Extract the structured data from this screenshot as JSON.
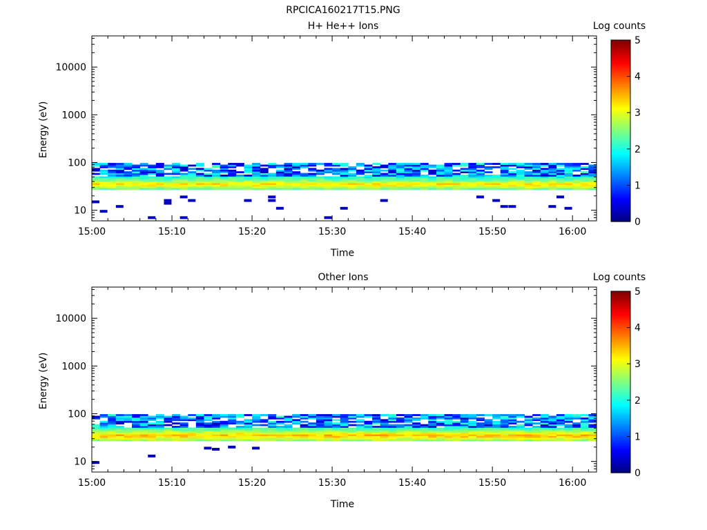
{
  "figure": {
    "title": "RPCICA160217T15.PNG"
  },
  "chart_data": [
    {
      "type": "heatmap",
      "title": "H+ He++ Ions",
      "xlabel": "Time",
      "ylabel": "Energy (eV)",
      "x_ticks": [
        "15:00",
        "15:10",
        "15:20",
        "15:30",
        "15:40",
        "15:50",
        "16:00"
      ],
      "x_range": [
        "15:00",
        "16:03"
      ],
      "y_scale": "log",
      "y_ticks": [
        10,
        100,
        1000,
        10000
      ],
      "y_tick_labels": [
        "10",
        "100",
        "1000",
        "10000"
      ],
      "y_range": [
        6,
        45000
      ],
      "colorbar": {
        "label": "Log counts",
        "range": [
          0,
          5
        ],
        "ticks": [
          "0",
          "1",
          "2",
          "3",
          "4",
          "5"
        ],
        "colormap": "jet"
      },
      "core_band": {
        "energy_min_eV": 27,
        "energy_max_eV": 52,
        "peak_energy_eV": 35,
        "peak_log_counts": 3.3
      },
      "upper_band": {
        "energy_min_eV": 52,
        "energy_max_eV": 98,
        "log_counts_range": [
          0.3,
          2.2
        ]
      },
      "sparse_low_energy": [
        {
          "time": "15:00",
          "energy_eV": 15,
          "log_counts": 0.3
        },
        {
          "time": "15:01",
          "energy_eV": 9.5,
          "log_counts": 0.3
        },
        {
          "time": "15:03",
          "energy_eV": 12,
          "log_counts": 0.3
        },
        {
          "time": "15:07",
          "energy_eV": 7,
          "log_counts": 0.3
        },
        {
          "time": "15:09",
          "energy_eV": 14,
          "log_counts": 0.3
        },
        {
          "time": "15:09",
          "energy_eV": 16,
          "log_counts": 0.3
        },
        {
          "time": "15:11",
          "energy_eV": 7,
          "log_counts": 0.3
        },
        {
          "time": "15:11",
          "energy_eV": 19,
          "log_counts": 0.3
        },
        {
          "time": "15:12",
          "energy_eV": 16,
          "log_counts": 0.3
        },
        {
          "time": "15:19",
          "energy_eV": 16,
          "log_counts": 0.3
        },
        {
          "time": "15:22",
          "energy_eV": 19,
          "log_counts": 0.3
        },
        {
          "time": "15:22",
          "energy_eV": 16,
          "log_counts": 0.3
        },
        {
          "time": "15:23",
          "energy_eV": 11,
          "log_counts": 0.4
        },
        {
          "time": "15:29",
          "energy_eV": 7,
          "log_counts": 0.3
        },
        {
          "time": "15:31",
          "energy_eV": 11,
          "log_counts": 0.3
        },
        {
          "time": "15:36",
          "energy_eV": 16,
          "log_counts": 0.3
        },
        {
          "time": "15:48",
          "energy_eV": 19,
          "log_counts": 0.3
        },
        {
          "time": "15:50",
          "energy_eV": 16,
          "log_counts": 0.3
        },
        {
          "time": "15:51",
          "energy_eV": 12,
          "log_counts": 0.3
        },
        {
          "time": "15:52",
          "energy_eV": 12,
          "log_counts": 0.4
        },
        {
          "time": "15:57",
          "energy_eV": 12,
          "log_counts": 0.3
        },
        {
          "time": "15:58",
          "energy_eV": 19,
          "log_counts": 0.3
        },
        {
          "time": "15:59",
          "energy_eV": 11,
          "log_counts": 0.3
        }
      ]
    },
    {
      "type": "heatmap",
      "title": "Other Ions",
      "xlabel": "Time",
      "ylabel": "Energy (eV)",
      "x_ticks": [
        "15:00",
        "15:10",
        "15:20",
        "15:30",
        "15:40",
        "15:50",
        "16:00"
      ],
      "x_range": [
        "15:00",
        "16:03"
      ],
      "y_scale": "log",
      "y_ticks": [
        10,
        100,
        1000,
        10000
      ],
      "y_tick_labels": [
        "10",
        "100",
        "1000",
        "10000"
      ],
      "y_range": [
        6,
        45000
      ],
      "colorbar": {
        "label": "Log counts",
        "range": [
          0,
          5
        ],
        "ticks": [
          "0",
          "1",
          "2",
          "3",
          "4",
          "5"
        ],
        "colormap": "jet"
      },
      "core_band": {
        "energy_min_eV": 27,
        "energy_max_eV": 52,
        "peak_energy_eV": 35,
        "peak_log_counts": 3.5
      },
      "upper_band": {
        "energy_min_eV": 52,
        "energy_max_eV": 98,
        "log_counts_range": [
          0.3,
          2.2
        ]
      },
      "sparse_low_energy": [
        {
          "time": "15:00",
          "energy_eV": 9.5,
          "log_counts": 0.3
        },
        {
          "time": "15:07",
          "energy_eV": 13,
          "log_counts": 0.3
        },
        {
          "time": "15:14",
          "energy_eV": 19,
          "log_counts": 0.3
        },
        {
          "time": "15:15",
          "energy_eV": 18,
          "log_counts": 0.3
        },
        {
          "time": "15:17",
          "energy_eV": 20,
          "log_counts": 0.3
        },
        {
          "time": "15:20",
          "energy_eV": 19,
          "log_counts": 0.3
        }
      ]
    }
  ]
}
